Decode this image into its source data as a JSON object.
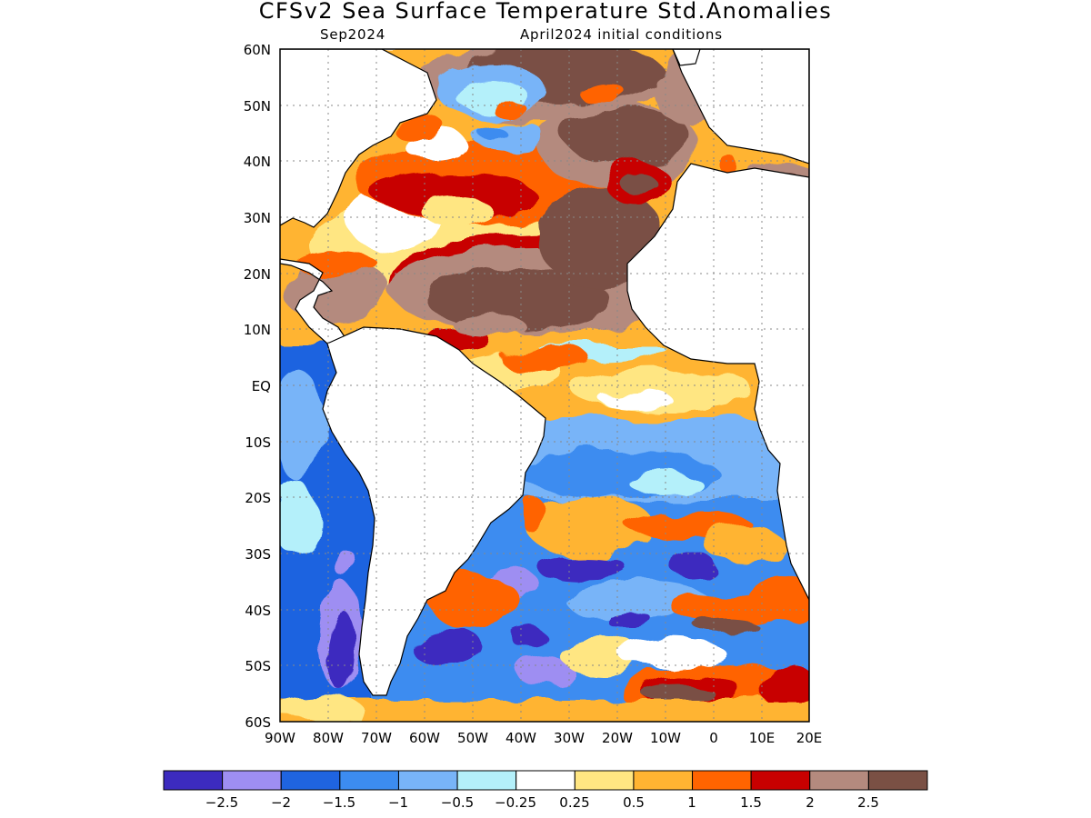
{
  "title": "CFSv2 Sea Surface Temperature Std.Anomalies",
  "subtitle_left": "Sep2024",
  "subtitle_right": "April2024 initial conditions",
  "y_ticks": [
    "60N",
    "50N",
    "40N",
    "30N",
    "20N",
    "10N",
    "EQ",
    "10S",
    "20S",
    "30S",
    "40S",
    "50S",
    "60S"
  ],
  "x_ticks": [
    "90W",
    "80W",
    "70W",
    "60W",
    "50W",
    "40W",
    "30W",
    "20W",
    "10W",
    "0",
    "10E",
    "20E"
  ],
  "lon_range": [
    -90,
    20
  ],
  "lat_range": [
    -60,
    60
  ],
  "legend": {
    "labels": [
      "−2.5",
      "−2",
      "−1.5",
      "−1",
      "−0.5",
      "−0.25",
      "0.25",
      "0.5",
      "1",
      "1.5",
      "2",
      "2.5"
    ],
    "colors": [
      "#3c2bbf",
      "#9e8ef2",
      "#1f64e0",
      "#3c8cf0",
      "#78b4f8",
      "#b4f0fa",
      "#ffffff",
      "#ffe682",
      "#ffb432",
      "#ff6400",
      "#c80000",
      "#b48a7e",
      "#7a5044"
    ]
  },
  "land_color": "#ffffff",
  "grid": "dotted"
}
